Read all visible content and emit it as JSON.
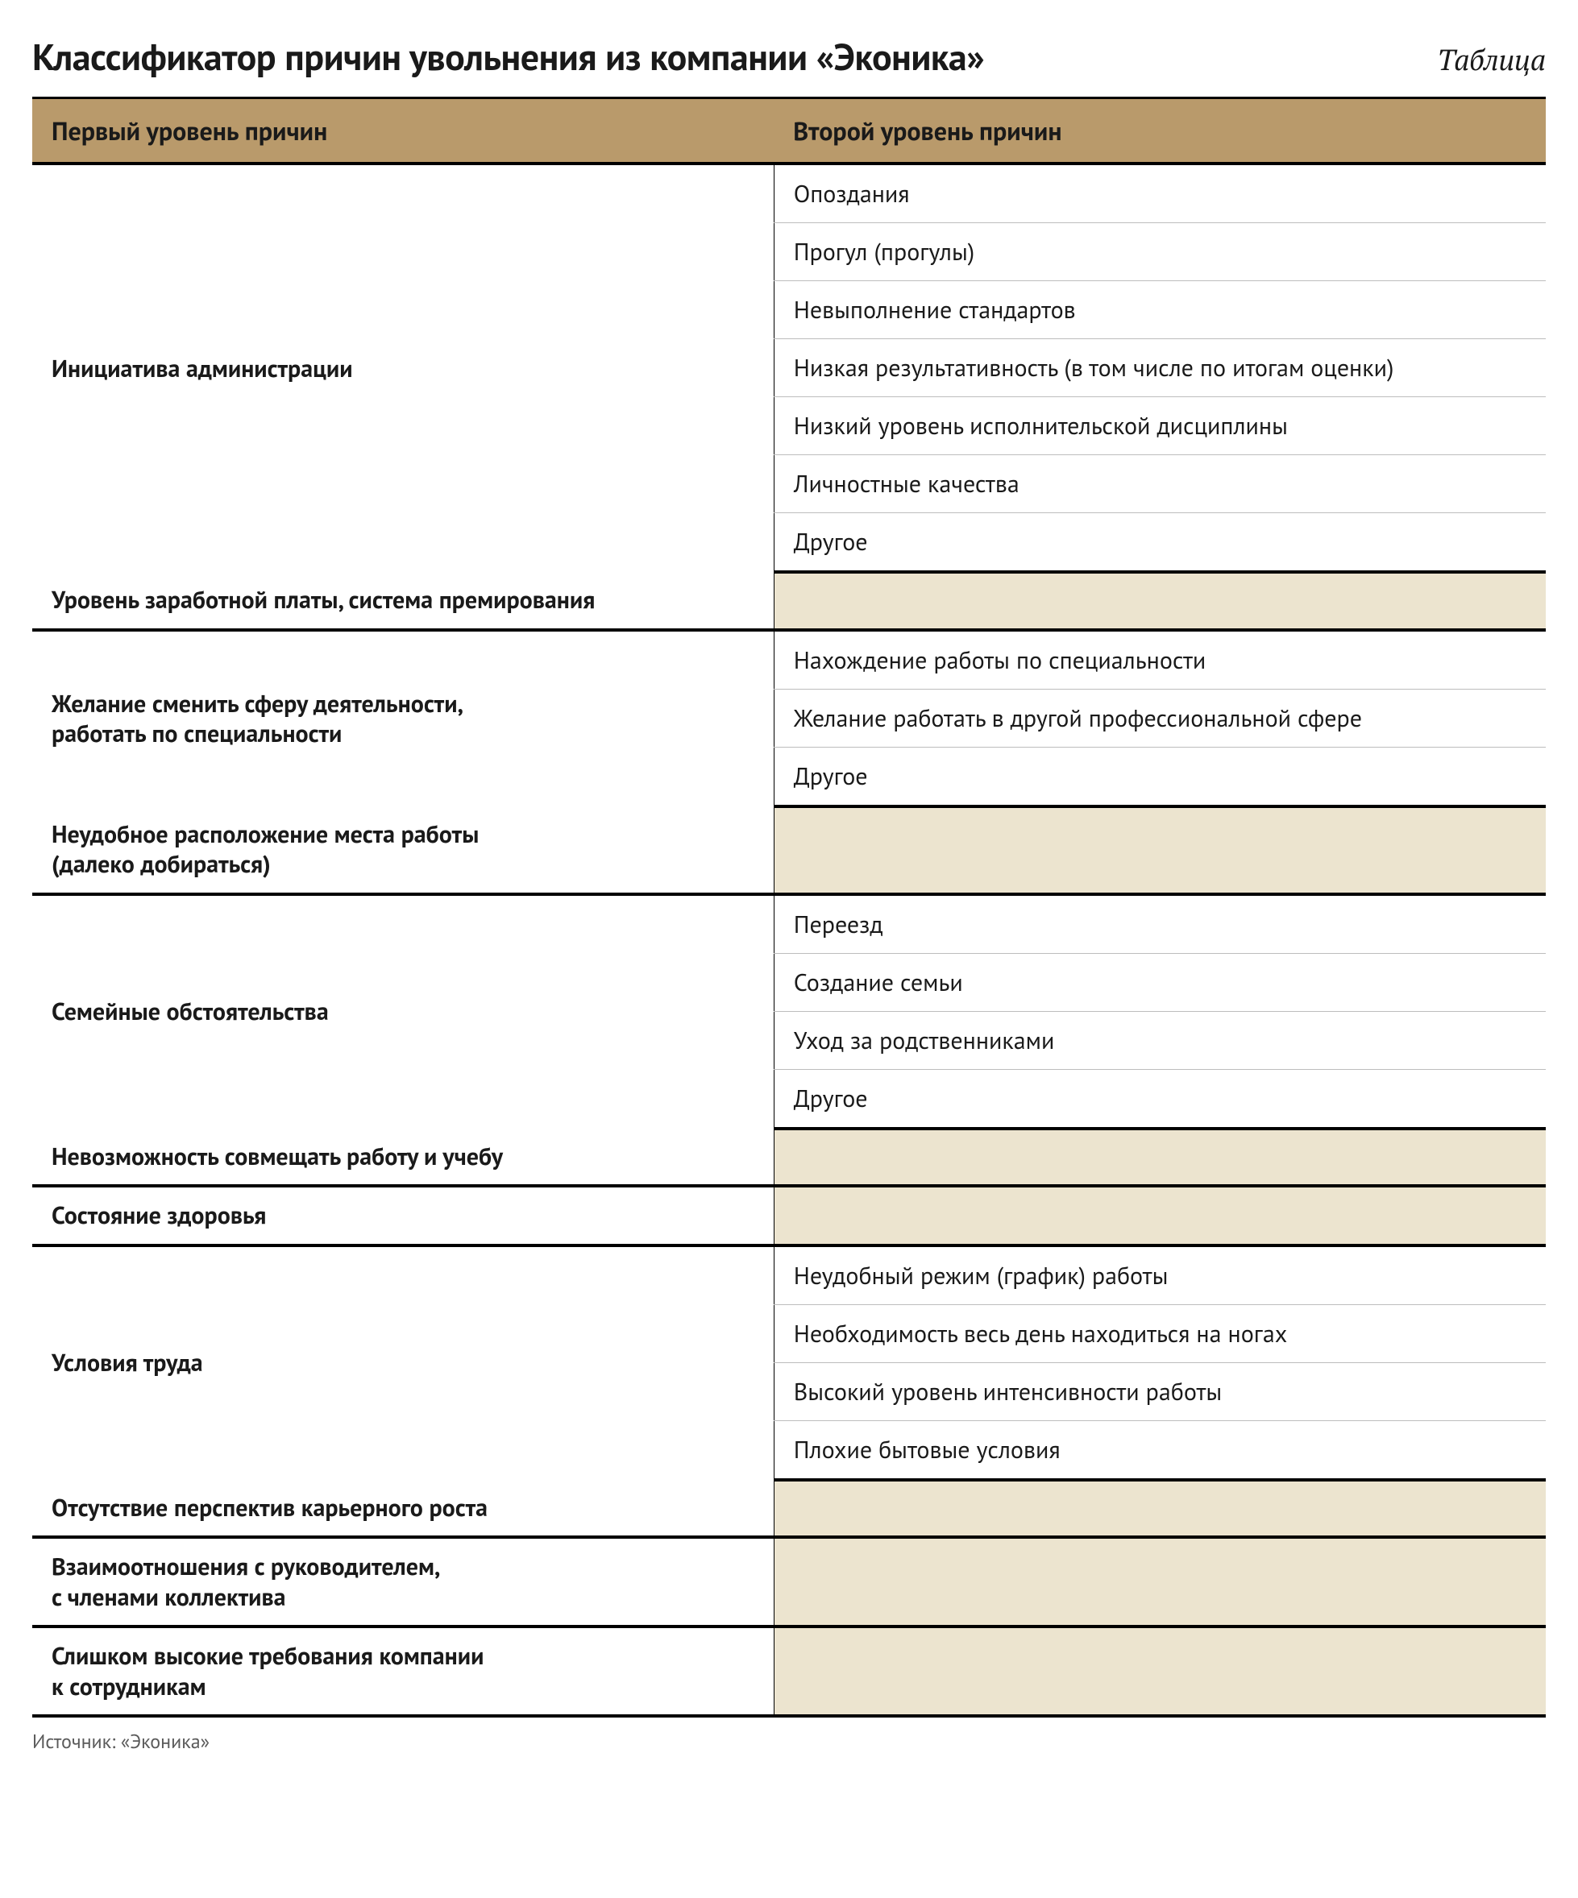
{
  "colors": {
    "header_bg": "#b99a6b",
    "empty_bg": "#ece4cf",
    "border_thick": "#000000",
    "border_thin": "#bdbdbd",
    "text": "#1a1a1a",
    "footer_text": "#5a5a5a",
    "page_bg": "#ffffff"
  },
  "typography": {
    "title_fontsize": 46,
    "caption_fontsize": 36,
    "header_fontsize": 32,
    "cell_fontsize": 30,
    "footer_fontsize": 24
  },
  "title": "Классификатор причин увольнения из компании «Эконика»",
  "caption": "Таблица",
  "columns": [
    "Первый уровень причин",
    "Второй уровень причин"
  ],
  "sections": [
    {
      "level1": "Инициатива администрации",
      "level2": [
        "Опоздания",
        "Прогул (прогулы)",
        "Невыполнение стандартов",
        "Низкая результативность (в том числе по итогам оценки)",
        "Низкий уровень исполнительской дисциплины",
        "Личностные качества",
        "Другое"
      ]
    },
    {
      "level1": "Уровень заработной платы, система премирования",
      "level2": []
    },
    {
      "level1": "Желание сменить сферу деятельности,\nработать по специальности",
      "level2": [
        "Нахождение работы по специальности",
        "Желание работать в другой профессиональной сфере",
        "Другое"
      ]
    },
    {
      "level1": "Неудобное расположение места работы\n(далеко добираться)",
      "level2": []
    },
    {
      "level1": "Семейные обстоятельства",
      "level2": [
        "Переезд",
        "Создание семьи",
        "Уход за родственниками",
        "Другое"
      ]
    },
    {
      "level1": "Невозможность совмещать работу и учебу",
      "level2": []
    },
    {
      "level1": "Состояние здоровья",
      "level2": []
    },
    {
      "level1": "Условия труда",
      "level2": [
        "Неудобный режим (график) работы",
        "Необходимость весь день находиться на ногах",
        "Высокий уровень интенсивности работы",
        "Плохие бытовые условия"
      ]
    },
    {
      "level1": "Отсутствие перспектив карьерного роста",
      "level2": []
    },
    {
      "level1": "Взаимоотношения с руководителем,\nс членами коллектива",
      "level2": []
    },
    {
      "level1": "Слишком высокие требования компании\nк сотрудникам",
      "level2": []
    }
  ],
  "footer": "Источник: «Эконика»"
}
